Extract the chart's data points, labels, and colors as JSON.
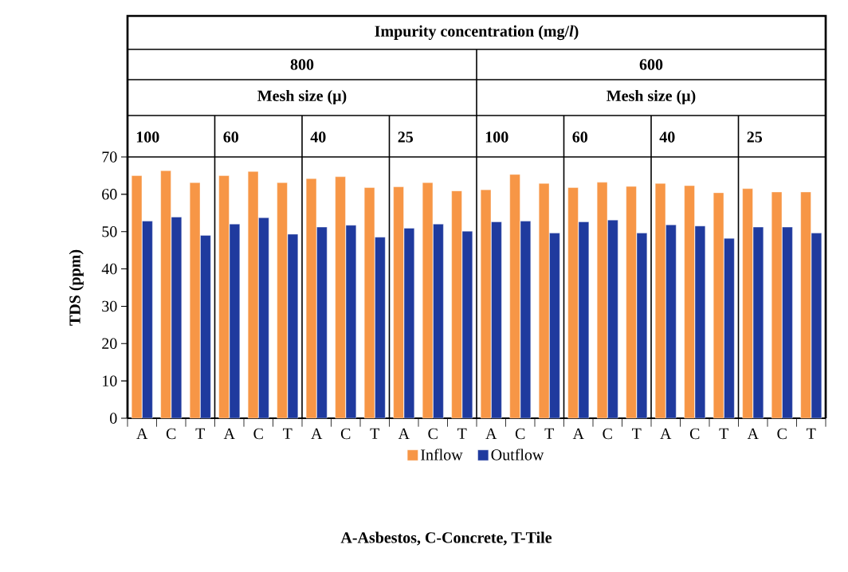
{
  "chart_data": {
    "type": "bar",
    "ylabel": "TDS (ppm)",
    "categories": [
      "A",
      "C",
      "T",
      "A",
      "C",
      "T",
      "A",
      "C",
      "T",
      "A",
      "C",
      "T",
      "A",
      "C",
      "T",
      "A",
      "C",
      "T",
      "A",
      "C",
      "T",
      "A",
      "C",
      "T"
    ],
    "series": [
      {
        "name": "Inflow",
        "color": "#f79646",
        "values": [
          65.0,
          66.3,
          63.1,
          65.0,
          66.1,
          63.1,
          64.2,
          64.7,
          61.8,
          62.0,
          63.1,
          60.9,
          61.2,
          65.3,
          62.9,
          61.8,
          63.2,
          62.1,
          62.9,
          62.3,
          60.4,
          61.5,
          60.6,
          60.6
        ]
      },
      {
        "name": "Outflow",
        "color": "#1f3a9e",
        "values": [
          52.8,
          53.9,
          49.0,
          52.0,
          53.7,
          49.3,
          51.2,
          51.7,
          48.5,
          50.9,
          52.0,
          50.1,
          52.6,
          52.8,
          49.6,
          52.6,
          53.1,
          49.6,
          51.8,
          51.5,
          48.2,
          51.2,
          51.2,
          49.6
        ]
      }
    ],
    "ylim": [
      0,
      70
    ],
    "yticks": [
      0,
      10,
      20,
      30,
      40,
      50,
      60,
      70
    ],
    "legend": "bottom",
    "grid": false,
    "annotations": [
      "Impurity concentration (mg/*l*)",
      "800",
      "600",
      "Mesh size (μ)",
      "Mesh size (μ)",
      "100",
      "60",
      "40",
      "25",
      "100",
      "60",
      "40",
      "25",
      "A-Asbestos, C-Concrete, T-Tile"
    ]
  }
}
